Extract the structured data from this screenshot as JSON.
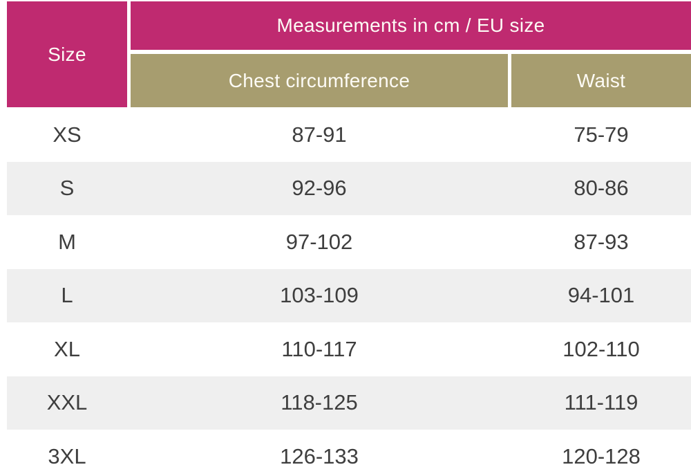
{
  "colors": {
    "header_primary_pink": "#bf2a70",
    "header_secondary_khaki": "#a79d6f",
    "header_text": "#fdfbf5",
    "row_alt_gray": "#efefef",
    "row_white": "#ffffff",
    "body_text": "#3e3e3e"
  },
  "table": {
    "size_header": "Size",
    "group_header": "Measurements in cm / EU size",
    "sub_headers": {
      "chest": "Chest circumference",
      "waist": "Waist"
    },
    "rows": [
      {
        "size": "XS",
        "chest": "87-91",
        "waist": "75-79"
      },
      {
        "size": "S",
        "chest": "92-96",
        "waist": "80-86"
      },
      {
        "size": "M",
        "chest": "97-102",
        "waist": "87-93"
      },
      {
        "size": "L",
        "chest": "103-109",
        "waist": "94-101"
      },
      {
        "size": "XL",
        "chest": "110-117",
        "waist": "102-110"
      },
      {
        "size": "XXL",
        "chest": "118-125",
        "waist": "111-119"
      },
      {
        "size": "3XL",
        "chest": "126-133",
        "waist": "120-128"
      }
    ]
  },
  "chart_data": {
    "type": "table",
    "title": "Measurements in cm / EU size",
    "columns": [
      "Size",
      "Chest circumference",
      "Waist"
    ],
    "rows": [
      [
        "XS",
        "87-91",
        "75-79"
      ],
      [
        "S",
        "92-96",
        "80-86"
      ],
      [
        "M",
        "97-102",
        "87-93"
      ],
      [
        "L",
        "103-109",
        "94-101"
      ],
      [
        "XL",
        "110-117",
        "102-110"
      ],
      [
        "XXL",
        "118-125",
        "111-119"
      ],
      [
        "3XL",
        "126-133",
        "120-128"
      ]
    ]
  }
}
